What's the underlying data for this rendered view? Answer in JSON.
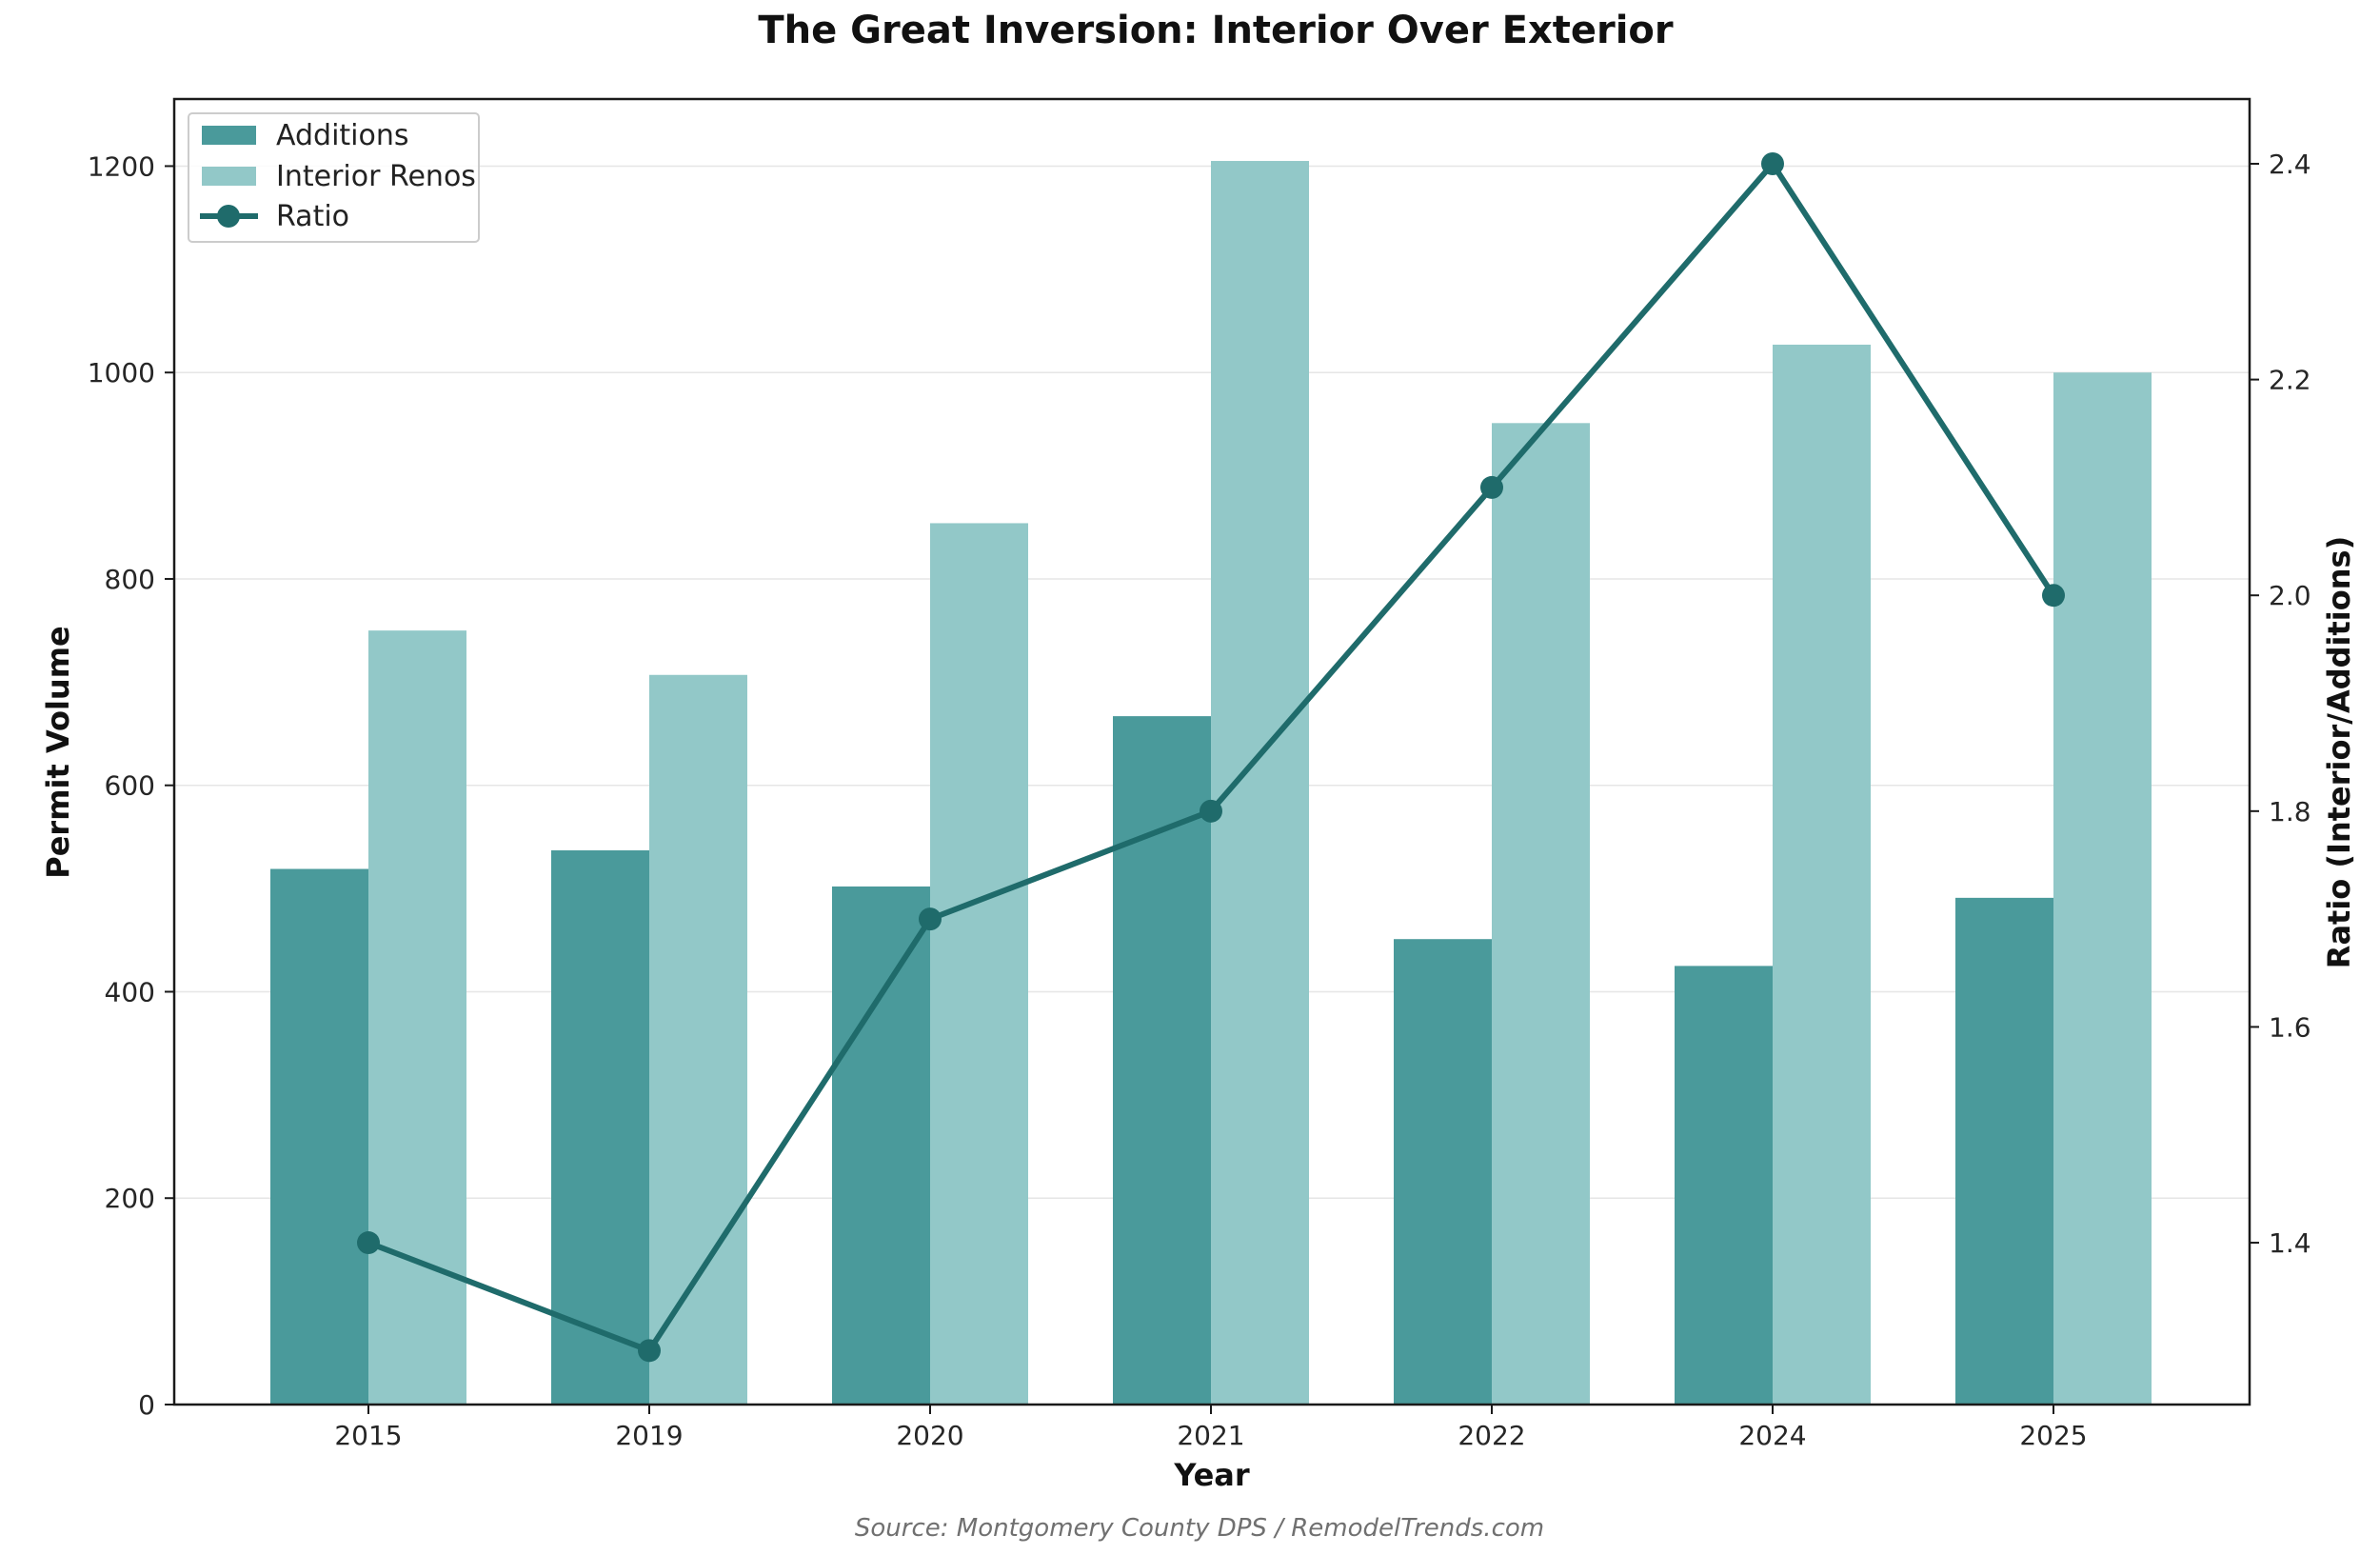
{
  "chart_data": {
    "type": "bar",
    "title": "The Great Inversion: Interior Over Exterior",
    "source": "Source: Montgomery County DPS / RemodelTrends.com",
    "xlabel": "Year",
    "ylabel": "Permit Volume",
    "y2label": "Ratio (Interior/Additions)",
    "categories": [
      "2015",
      "2019",
      "2020",
      "2021",
      "2022",
      "2024",
      "2025"
    ],
    "ylim": [
      0,
      1265
    ],
    "yticks": [
      0,
      200,
      400,
      600,
      800,
      1000,
      1200
    ],
    "y2lim": [
      1.25,
      2.46
    ],
    "y2ticks": [
      1.4,
      1.6,
      1.8,
      2.0,
      2.2,
      2.4
    ],
    "y2tick_labels": [
      "1.4",
      "1.6",
      "1.8",
      "2.0",
      "2.2",
      "2.4"
    ],
    "grid": "horizontal",
    "legend_position": "top-left",
    "series": [
      {
        "name": "Additions",
        "kind": "bar",
        "axis": "left",
        "color": "#4a9a9b",
        "values": [
          519,
          537,
          502,
          667,
          451,
          425,
          491
        ]
      },
      {
        "name": "Interior Renos",
        "kind": "bar",
        "axis": "left",
        "color": "#92c8c8",
        "values": [
          750,
          707,
          854,
          1205,
          951,
          1027,
          1000
        ]
      },
      {
        "name": "Ratio",
        "kind": "line",
        "axis": "right",
        "color": "#1f6b6b",
        "values": [
          1.4,
          1.3,
          1.7,
          1.8,
          2.1,
          2.4,
          2.0
        ]
      }
    ]
  }
}
